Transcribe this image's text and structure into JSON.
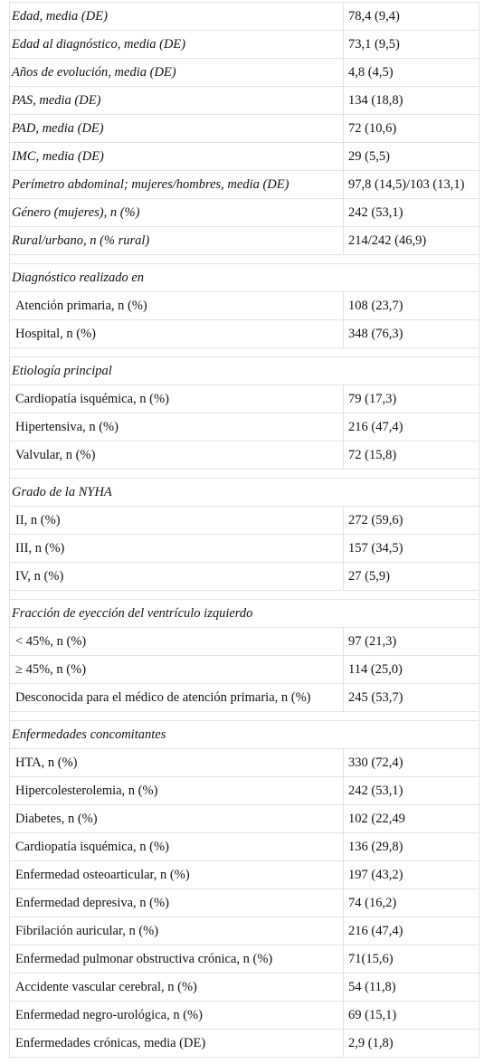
{
  "table": {
    "top_rows": [
      [
        "Edad, media (DE)",
        "78,4 (9,4)"
      ],
      [
        "Edad al diagnóstico, media (DE)",
        "73,1 (9,5)"
      ],
      [
        "Años de evolución, media (DE)",
        "4,8 (4,5)"
      ],
      [
        "PAS, media (DE)",
        "134 (18,8)"
      ],
      [
        "PAD, media (DE)",
        "72 (10,6)"
      ],
      [
        "IMC, media (DE)",
        "29 (5,5)"
      ],
      [
        "Perímetro abdominal; mujeres/hombres, media (DE)",
        "97,8 (14,5)/103 (13,1)"
      ],
      [
        "Género (mujeres), n (%)",
        "242 (53,1)"
      ],
      [
        "Rural/urbano, n (% rural)",
        "214/242 (46,9)"
      ]
    ],
    "sections": [
      {
        "title": "Diagnóstico realizado en",
        "rows": [
          [
            "Atención primaria, n (%)",
            "108 (23,7)"
          ],
          [
            "Hospital, n (%)",
            "348 (76,3)"
          ]
        ]
      },
      {
        "title": "Etiología principal",
        "rows": [
          [
            "Cardiopatía isquémica, n (%)",
            "79 (17,3)"
          ],
          [
            "Hipertensiva, n (%)",
            "216 (47,4)"
          ],
          [
            "Valvular, n (%)",
            "72 (15,8)"
          ]
        ]
      },
      {
        "title": "Grado de la NYHA",
        "rows": [
          [
            "II, n (%)",
            "272 (59,6)"
          ],
          [
            "III, n (%)",
            "157 (34,5)"
          ],
          [
            "IV, n (%)",
            "27 (5,9)"
          ]
        ]
      },
      {
        "title": "Fracción de eyección del ventrículo izquierdo",
        "rows": [
          [
            "< 45%, n (%)",
            "97 (21,3)"
          ],
          [
            "≥ 45%, n (%)",
            "114 (25,0)"
          ],
          [
            "Desconocida para el médico de atención primaria, n (%)",
            "245 (53,7)"
          ]
        ]
      },
      {
        "title": "Enfermedades concomitantes",
        "rows": [
          [
            "HTA, n (%)",
            "330 (72,4)"
          ],
          [
            "Hipercolesterolemia, n (%)",
            "242 (53,1)"
          ],
          [
            "Diabetes, n (%)",
            "102 (22,49"
          ],
          [
            "Cardiopatía isquémica, n (%)",
            "136 (29,8)"
          ],
          [
            "Enfermedad osteoarticular, n (%)",
            "197 (43,2)"
          ],
          [
            "Enfermedad depresiva, n (%)",
            "74 (16,2)"
          ],
          [
            "Fibrilación auricular, n (%)",
            "216 (47,4)"
          ],
          [
            "Enfermedad pulmonar obstructiva crónica, n (%)",
            "71(15,6)"
          ],
          [
            "Accidente vascular cerebral, n (%)",
            "54 (11,8)"
          ],
          [
            "Enfermedad negro-urológica, n (%)",
            "69 (15,1)"
          ],
          [
            "Enfermedades crónicas, media (DE)",
            "2,9 (1,8)"
          ]
        ]
      }
    ]
  }
}
